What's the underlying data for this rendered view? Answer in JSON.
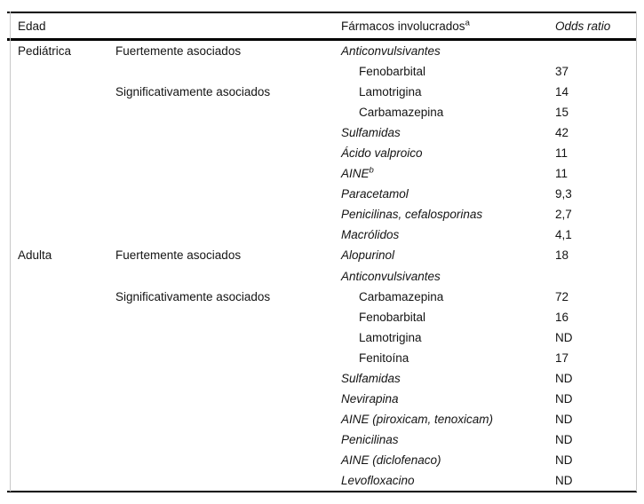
{
  "table": {
    "header": {
      "age": "Edad",
      "drugs": "Fármacos involucrados",
      "drugs_sup": "a",
      "odds": "Odds ratio"
    },
    "rows": [
      {
        "age": "Pediátrica",
        "assoc": "Fuertemente asociados",
        "drug": "Anticonvulsivantes",
        "italic": true,
        "indent": false,
        "sup": "",
        "odds": ""
      },
      {
        "age": "",
        "assoc": "",
        "drug": "Fenobarbital",
        "italic": false,
        "indent": true,
        "sup": "",
        "odds": "37"
      },
      {
        "age": "",
        "assoc": "Significativamente asociados",
        "drug": "Lamotrigina",
        "italic": false,
        "indent": true,
        "sup": "",
        "odds": "14"
      },
      {
        "age": "",
        "assoc": "",
        "drug": "Carbamazepina",
        "italic": false,
        "indent": true,
        "sup": "",
        "odds": "15"
      },
      {
        "age": "",
        "assoc": "",
        "drug": "Sulfamidas",
        "italic": true,
        "indent": false,
        "sup": "",
        "odds": "42"
      },
      {
        "age": "",
        "assoc": "",
        "drug": "Ácido valproico",
        "italic": true,
        "indent": false,
        "sup": "",
        "odds": "11"
      },
      {
        "age": "",
        "assoc": "",
        "drug": "AINE",
        "italic": true,
        "indent": false,
        "sup": "b",
        "odds": "11"
      },
      {
        "age": "",
        "assoc": "",
        "drug": "Paracetamol",
        "italic": true,
        "indent": false,
        "sup": "",
        "odds": "9,3"
      },
      {
        "age": "",
        "assoc": "",
        "drug": "Penicilinas, cefalosporinas",
        "italic": true,
        "indent": false,
        "sup": "",
        "odds": "2,7"
      },
      {
        "age": "",
        "assoc": "",
        "drug": "Macrólidos",
        "italic": true,
        "indent": false,
        "sup": "",
        "odds": "4,1"
      },
      {
        "age": "Adulta",
        "assoc": "Fuertemente asociados",
        "drug": "Alopurinol",
        "italic": true,
        "indent": false,
        "sup": "",
        "odds": "18"
      },
      {
        "age": "",
        "assoc": "",
        "drug": "Anticonvulsivantes",
        "italic": true,
        "indent": false,
        "sup": "",
        "odds": ""
      },
      {
        "age": "",
        "assoc": "Significativamente asociados",
        "drug": "Carbamazepina",
        "italic": false,
        "indent": true,
        "sup": "",
        "odds": "72"
      },
      {
        "age": "",
        "assoc": "",
        "drug": "Fenobarbital",
        "italic": false,
        "indent": true,
        "sup": "",
        "odds": "16"
      },
      {
        "age": "",
        "assoc": "",
        "drug": "Lamotrigina",
        "italic": false,
        "indent": true,
        "sup": "",
        "odds": "ND"
      },
      {
        "age": "",
        "assoc": "",
        "drug": "Fenitoína",
        "italic": false,
        "indent": true,
        "sup": "",
        "odds": "17"
      },
      {
        "age": "",
        "assoc": "",
        "drug": "Sulfamidas",
        "italic": true,
        "indent": false,
        "sup": "",
        "odds": "ND"
      },
      {
        "age": "",
        "assoc": "",
        "drug": "Nevirapina",
        "italic": true,
        "indent": false,
        "sup": "",
        "odds": "ND"
      },
      {
        "age": "",
        "assoc": "",
        "drug": "AINE (piroxicam, tenoxicam)",
        "italic": true,
        "indent": false,
        "sup": "",
        "odds": "ND"
      },
      {
        "age": "",
        "assoc": "",
        "drug": "Penicilinas",
        "italic": true,
        "indent": false,
        "sup": "",
        "odds": "ND"
      },
      {
        "age": "",
        "assoc": "",
        "drug": "AINE (diclofenaco)",
        "italic": true,
        "indent": false,
        "sup": "",
        "odds": "ND"
      },
      {
        "age": "",
        "assoc": "",
        "drug": "Levofloxacino",
        "italic": true,
        "indent": false,
        "sup": "",
        "odds": "ND"
      }
    ],
    "colors": {
      "text": "#141414",
      "rule": "#000000",
      "edge_line": "#c8c8c8",
      "background": "#ffffff"
    }
  }
}
